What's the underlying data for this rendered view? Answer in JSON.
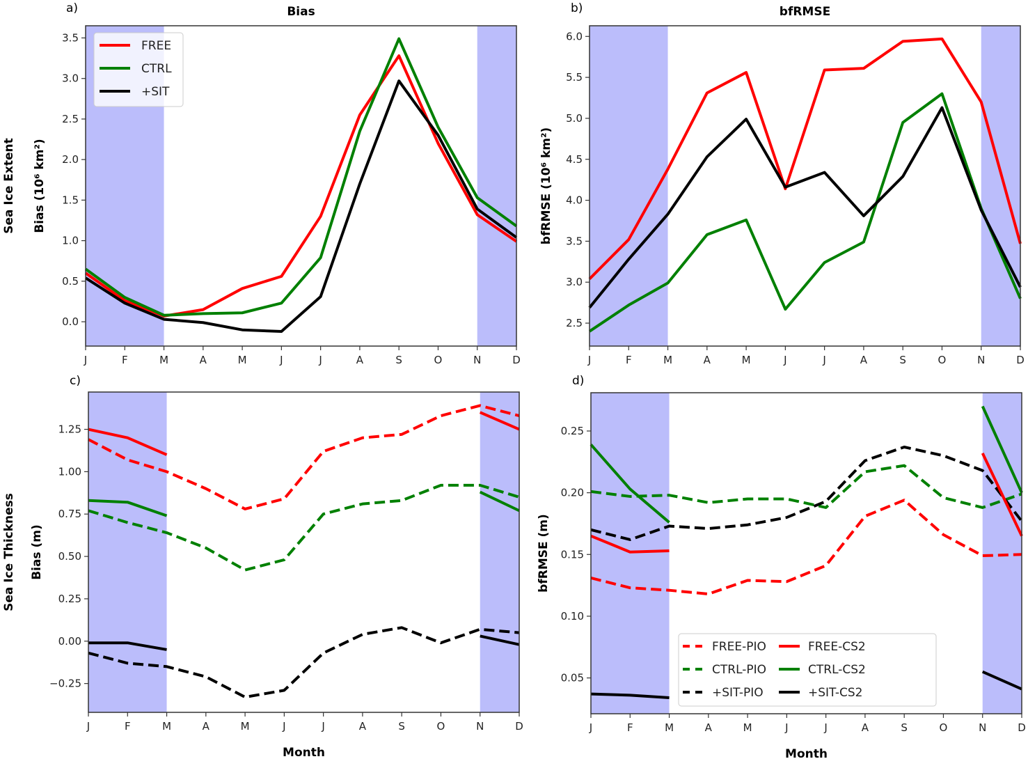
{
  "chart_data": [
    {
      "id": "a",
      "type": "line",
      "panel_label": "a)",
      "title": "Bias",
      "xlabel": "",
      "ylabel_line1": "Sea Ice Extent",
      "ylabel_line2": "Bias  (10⁶ km²)",
      "categories": [
        "J",
        "F",
        "M",
        "A",
        "M",
        "J",
        "J",
        "A",
        "S",
        "O",
        "N",
        "D"
      ],
      "ylim": [
        -0.3,
        3.65
      ],
      "yticks": [
        0.0,
        0.5,
        1.0,
        1.5,
        2.0,
        2.5,
        3.0,
        3.5
      ],
      "ytick_labels": [
        "0.0",
        "0.5",
        "1.0",
        "1.5",
        "2.0",
        "2.5",
        "3.0",
        "3.5"
      ],
      "shaded_months": [
        [
          0,
          2
        ],
        [
          10,
          11
        ]
      ],
      "grid": false,
      "legend": {
        "placement": "top-left",
        "columns": 1
      },
      "series": [
        {
          "name": "FREE",
          "color": "#ff0000",
          "dash": "solid",
          "values": [
            0.6,
            0.26,
            0.07,
            0.15,
            0.41,
            0.56,
            1.3,
            2.55,
            3.28,
            2.2,
            1.32,
            0.99
          ]
        },
        {
          "name": "CTRL",
          "color": "#008000",
          "dash": "solid",
          "values": [
            0.65,
            0.3,
            0.08,
            0.1,
            0.11,
            0.23,
            0.79,
            2.35,
            3.49,
            2.4,
            1.53,
            1.18
          ]
        },
        {
          "name": "+SIT",
          "color": "#000000",
          "dash": "solid",
          "values": [
            0.54,
            0.23,
            0.03,
            -0.01,
            -0.1,
            -0.12,
            0.31,
            1.7,
            2.97,
            2.3,
            1.39,
            1.04
          ]
        }
      ]
    },
    {
      "id": "b",
      "type": "line",
      "panel_label": "b)",
      "title": "bfRMSE",
      "xlabel": "",
      "ylabel_line1": "",
      "ylabel_line2": "bfRMSE  (10⁶ km²)",
      "categories": [
        "J",
        "F",
        "M",
        "A",
        "M",
        "J",
        "J",
        "A",
        "S",
        "O",
        "N",
        "D"
      ],
      "ylim": [
        2.22,
        6.13
      ],
      "yticks": [
        2.5,
        3.0,
        3.5,
        4.0,
        4.5,
        5.0,
        5.5,
        6.0
      ],
      "ytick_labels": [
        "2.5",
        "3.0",
        "3.5",
        "4.0",
        "4.5",
        "5.0",
        "5.5",
        "6.0"
      ],
      "shaded_months": [
        [
          0,
          2
        ],
        [
          10,
          11
        ]
      ],
      "grid": false,
      "legend": null,
      "series": [
        {
          "name": "FREE",
          "color": "#ff0000",
          "dash": "solid",
          "values": [
            3.04,
            3.52,
            4.38,
            5.31,
            5.56,
            4.14,
            5.59,
            5.61,
            5.94,
            5.97,
            5.2,
            3.47
          ]
        },
        {
          "name": "CTRL",
          "color": "#008000",
          "dash": "solid",
          "values": [
            2.4,
            2.72,
            2.99,
            3.58,
            3.76,
            2.67,
            3.24,
            3.49,
            4.95,
            5.3,
            3.9,
            2.8
          ]
        },
        {
          "name": "+SIT",
          "color": "#000000",
          "dash": "solid",
          "values": [
            2.69,
            3.28,
            3.83,
            4.53,
            4.99,
            4.16,
            4.34,
            3.81,
            4.29,
            5.13,
            3.88,
            2.94
          ]
        }
      ]
    },
    {
      "id": "c",
      "type": "line",
      "panel_label": "c)",
      "title": "",
      "xlabel": "Month",
      "ylabel_line1": "Sea Ice Thickness",
      "ylabel_line2": "Bias (m)",
      "categories": [
        "J",
        "F",
        "M",
        "A",
        "M",
        "J",
        "J",
        "A",
        "S",
        "O",
        "N",
        "D"
      ],
      "ylim": [
        -0.42,
        1.47
      ],
      "yticks": [
        -0.25,
        0.0,
        0.25,
        0.5,
        0.75,
        1.0,
        1.25
      ],
      "ytick_labels": [
        "−0.25",
        "0.00",
        "0.25",
        "0.50",
        "0.75",
        "1.00",
        "1.25"
      ],
      "shaded_months": [
        [
          0,
          2
        ],
        [
          10,
          11
        ]
      ],
      "grid": false,
      "legend": null,
      "series": [
        {
          "name": "FREE-PIO",
          "color": "#ff0000",
          "dash": "dashed",
          "values": [
            1.19,
            1.07,
            1.0,
            0.9,
            0.78,
            0.84,
            1.12,
            1.2,
            1.22,
            1.33,
            1.39,
            1.33
          ]
        },
        {
          "name": "CTRL-PIO",
          "color": "#008000",
          "dash": "dashed",
          "values": [
            0.77,
            0.7,
            0.64,
            0.55,
            0.42,
            0.48,
            0.75,
            0.81,
            0.83,
            0.92,
            0.92,
            0.85
          ]
        },
        {
          "name": "+SIT-PIO",
          "color": "#000000",
          "dash": "dashed",
          "values": [
            -0.07,
            -0.13,
            -0.15,
            -0.21,
            -0.33,
            -0.29,
            -0.07,
            0.04,
            0.08,
            -0.01,
            0.07,
            0.05
          ]
        },
        {
          "name": "FREE-CS2",
          "color": "#ff0000",
          "dash": "solid",
          "values": [
            1.25,
            1.2,
            1.1,
            null,
            null,
            null,
            null,
            null,
            null,
            null,
            1.35,
            1.25
          ]
        },
        {
          "name": "CTRL-CS2",
          "color": "#008000",
          "dash": "solid",
          "values": [
            0.83,
            0.82,
            0.74,
            null,
            null,
            null,
            null,
            null,
            null,
            null,
            0.88,
            0.77
          ]
        },
        {
          "name": "+SIT-CS2",
          "color": "#000000",
          "dash": "solid",
          "values": [
            -0.01,
            -0.01,
            -0.05,
            null,
            null,
            null,
            null,
            null,
            null,
            null,
            0.03,
            -0.02
          ]
        }
      ]
    },
    {
      "id": "d",
      "type": "line",
      "panel_label": "d)",
      "title": "",
      "xlabel": "Month",
      "ylabel_line1": "",
      "ylabel_line2": "bfRMSE (m)",
      "categories": [
        "J",
        "F",
        "M",
        "A",
        "M",
        "J",
        "J",
        "A",
        "S",
        "O",
        "N",
        "D"
      ],
      "ylim": [
        0.021,
        0.281
      ],
      "yticks": [
        0.05,
        0.1,
        0.15,
        0.2,
        0.25
      ],
      "ytick_labels": [
        "0.05",
        "0.10",
        "0.15",
        "0.20",
        "0.25"
      ],
      "shaded_months": [
        [
          0,
          2
        ],
        [
          10,
          11
        ]
      ],
      "grid": false,
      "legend": {
        "placement": "lower-center",
        "columns": 2
      },
      "series": [
        {
          "name": "FREE-PIO",
          "color": "#ff0000",
          "dash": "dashed",
          "values": [
            0.131,
            0.123,
            0.121,
            0.118,
            0.129,
            0.128,
            0.141,
            0.181,
            0.194,
            0.166,
            0.149,
            0.15
          ]
        },
        {
          "name": "CTRL-PIO",
          "color": "#008000",
          "dash": "dashed",
          "values": [
            0.201,
            0.197,
            0.198,
            0.192,
            0.195,
            0.195,
            0.188,
            0.217,
            0.222,
            0.196,
            0.188,
            0.199
          ]
        },
        {
          "name": "+SIT-PIO",
          "color": "#000000",
          "dash": "dashed",
          "values": [
            0.17,
            0.162,
            0.173,
            0.171,
            0.174,
            0.18,
            0.193,
            0.226,
            0.237,
            0.23,
            0.218,
            0.177
          ]
        },
        {
          "name": "FREE-CS2",
          "color": "#ff0000",
          "dash": "solid",
          "values": [
            0.165,
            0.152,
            0.153,
            null,
            null,
            null,
            null,
            null,
            null,
            null,
            0.232,
            0.165
          ]
        },
        {
          "name": "CTRL-CS2",
          "color": "#008000",
          "dash": "solid",
          "values": [
            0.239,
            0.203,
            0.176,
            null,
            null,
            null,
            null,
            null,
            null,
            null,
            0.27,
            0.2
          ]
        },
        {
          "name": "+SIT-CS2",
          "color": "#000000",
          "dash": "solid",
          "values": [
            0.037,
            0.036,
            0.034,
            null,
            null,
            null,
            null,
            null,
            null,
            null,
            0.055,
            0.041
          ]
        }
      ]
    }
  ],
  "colors": {
    "shade": "#bbbdfb",
    "shade_edge": "#9a9cf5"
  }
}
